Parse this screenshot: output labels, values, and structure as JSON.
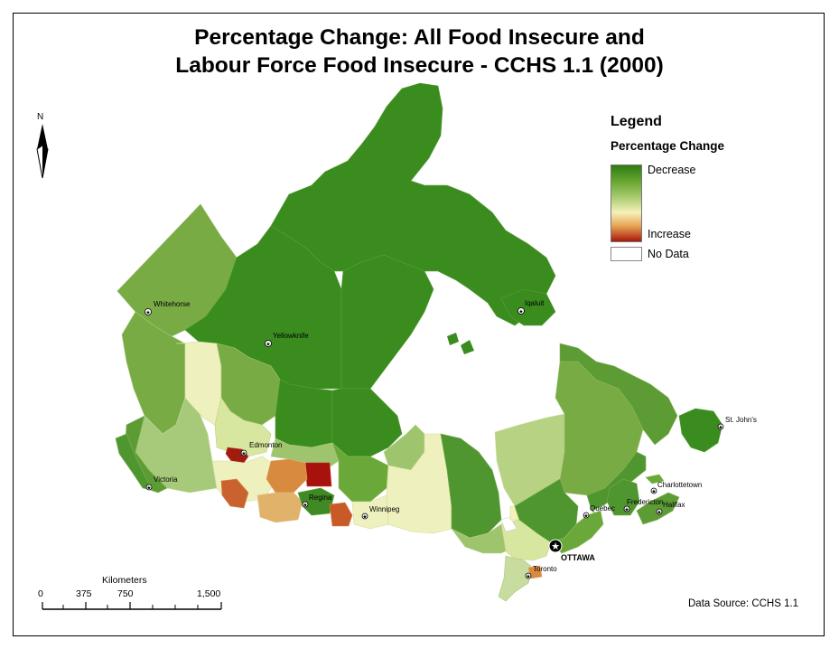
{
  "title": {
    "line1": "Percentage Change: All Food Insecure and",
    "line2": "Labour Force Food Insecure - CCHS 1.1 (2000)"
  },
  "legend": {
    "title": "Legend",
    "subtitle": "Percentage Change",
    "decrease_label": "Decrease",
    "increase_label": "Increase",
    "nodata_label": "No Data",
    "colors": {
      "strong_decrease": "#2e7d12",
      "decrease": "#6aa733",
      "slight_decrease": "#b3d17a",
      "neutral": "#f6f1b8",
      "increase": "#e6a354",
      "strong_increase": "#a81a0a",
      "no_data": "#ffffff"
    }
  },
  "north_arrow": {
    "label": "N"
  },
  "scale_bar": {
    "unit": "Kilometers",
    "ticks": [
      "0",
      "375",
      "750",
      "1,500"
    ]
  },
  "source": "Data Source: CCHS 1.1",
  "cities": {
    "whitehorse": "Whitehorse",
    "yellowknife": "Yellowknife",
    "iqaluit": "Iqaluit",
    "edmonton": "Edmonton",
    "victoria": "Victoria",
    "regina": "Regina",
    "winnipeg": "Winnipeg",
    "toronto": "Toronto",
    "ottawa": "OTTAWA",
    "quebec": "Quebec",
    "fredericton": "Fredericton",
    "charlottetown": "Charlottetown",
    "halifax": "Halifax",
    "st_johns": "St. John's"
  }
}
